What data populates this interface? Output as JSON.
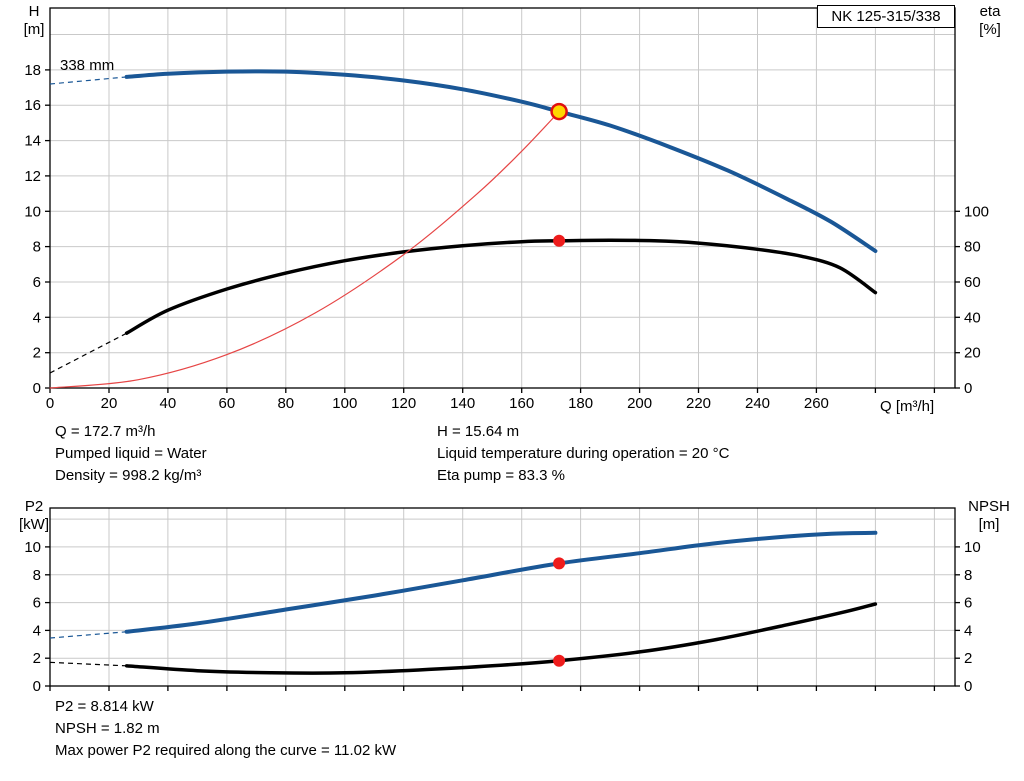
{
  "colors": {
    "blue": "#1a5796",
    "black": "#000000",
    "red": "#e64545",
    "marker_red": "#ee1c1c",
    "yellow": "#ffd800",
    "duty_ring": "#e01010",
    "grid": "#c9c9c9",
    "axis": "#000000"
  },
  "chart_data": [
    {
      "type": "line",
      "title": "NK 125-315/338",
      "annotation": "338 mm",
      "xlabel": "Q [m³/h]",
      "x_range": [
        0,
        307
      ],
      "x_tick_step": 20,
      "x_label_max": 260,
      "grid": true,
      "left_axis": {
        "label_lines": [
          "H",
          "[m]"
        ],
        "range": [
          0,
          21.5
        ],
        "tick_step": 2,
        "label_max": 18
      },
      "right_axis": {
        "label_lines": [
          "eta",
          "[%]"
        ],
        "range": [
          0,
          215
        ],
        "tick_step": 20,
        "label_max": 100
      },
      "series": [
        {
          "name": "head-curve-338mm",
          "axis": "left",
          "color_key": "blue",
          "width": 4,
          "dashed_lead": [
            [
              0,
              17.2
            ],
            [
              26,
              17.6
            ]
          ],
          "points": [
            [
              26,
              17.6
            ],
            [
              40,
              17.78
            ],
            [
              60,
              17.9
            ],
            [
              80,
              17.9
            ],
            [
              100,
              17.72
            ],
            [
              120,
              17.4
            ],
            [
              140,
              16.9
            ],
            [
              160,
              16.2
            ],
            [
              172.7,
              15.64
            ],
            [
              190,
              14.85
            ],
            [
              210,
              13.65
            ],
            [
              230,
              12.3
            ],
            [
              250,
              10.7
            ],
            [
              265,
              9.4
            ],
            [
              280,
              7.75
            ]
          ]
        },
        {
          "name": "efficiency-curve",
          "axis": "right",
          "color_key": "black",
          "width": 3.5,
          "dashed_lead": [
            [
              0,
              8.5
            ],
            [
              26,
              31
            ]
          ],
          "points": [
            [
              26,
              31
            ],
            [
              40,
              44
            ],
            [
              60,
              56
            ],
            [
              80,
              65
            ],
            [
              100,
              72
            ],
            [
              120,
              77
            ],
            [
              140,
              80.5
            ],
            [
              160,
              82.8
            ],
            [
              172.7,
              83.3
            ],
            [
              190,
              83.6
            ],
            [
              205,
              83.3
            ],
            [
              220,
              82
            ],
            [
              240,
              78.5
            ],
            [
              255,
              74.5
            ],
            [
              268,
              68
            ],
            [
              280,
              54
            ]
          ]
        },
        {
          "name": "system-curve",
          "axis": "left",
          "color_key": "red",
          "width": 1.2,
          "points": [
            [
              0,
              0
            ],
            [
              30,
              0.47
            ],
            [
              60,
              1.89
            ],
            [
              90,
              4.25
            ],
            [
              120,
              7.55
            ],
            [
              145,
              11.0
            ],
            [
              160,
              13.4
            ],
            [
              172.7,
              15.64
            ]
          ]
        }
      ],
      "markers": [
        {
          "name": "duty-point",
          "axis": "left",
          "x": 172.7,
          "y": 15.64,
          "r": 7.5,
          "fill_key": "yellow",
          "stroke_key": "duty_ring",
          "stroke_width": 2.5
        },
        {
          "name": "efficiency-point",
          "axis": "right",
          "x": 172.7,
          "y": 83.3,
          "r": 5.5,
          "fill_key": "marker_red",
          "stroke_key": "marker_red",
          "stroke_width": 1
        }
      ]
    },
    {
      "type": "line",
      "title": "",
      "xlabel": "",
      "x_range": [
        0,
        307
      ],
      "x_tick_step": 20,
      "x_label_max": -1,
      "grid": true,
      "left_axis": {
        "label_lines": [
          "P2",
          "[kW]"
        ],
        "range": [
          0,
          12.8
        ],
        "tick_step": 2,
        "label_max": 10
      },
      "right_axis": {
        "label_lines": [
          "NPSH",
          "[m]"
        ],
        "range": [
          0,
          12.8
        ],
        "tick_step": 2,
        "label_max": 10
      },
      "series": [
        {
          "name": "p2-curve",
          "axis": "left",
          "color_key": "blue",
          "width": 4,
          "dashed_lead": [
            [
              0,
              3.45
            ],
            [
              26,
              3.9
            ]
          ],
          "points": [
            [
              26,
              3.9
            ],
            [
              50,
              4.5
            ],
            [
              80,
              5.5
            ],
            [
              110,
              6.5
            ],
            [
              140,
              7.6
            ],
            [
              172.7,
              8.814
            ],
            [
              200,
              9.55
            ],
            [
              225,
              10.25
            ],
            [
              250,
              10.75
            ],
            [
              265,
              10.95
            ],
            [
              280,
              11.02
            ]
          ]
        },
        {
          "name": "npsh-curve",
          "axis": "right",
          "color_key": "black",
          "width": 3.5,
          "dashed_lead": [
            [
              0,
              1.7
            ],
            [
              26,
              1.45
            ]
          ],
          "points": [
            [
              26,
              1.45
            ],
            [
              50,
              1.1
            ],
            [
              75,
              0.95
            ],
            [
              100,
              0.95
            ],
            [
              125,
              1.15
            ],
            [
              150,
              1.45
            ],
            [
              172.7,
              1.82
            ],
            [
              200,
              2.45
            ],
            [
              225,
              3.3
            ],
            [
              250,
              4.4
            ],
            [
              270,
              5.35
            ],
            [
              280,
              5.9
            ]
          ]
        }
      ],
      "markers": [
        {
          "name": "p2-point",
          "axis": "left",
          "x": 172.7,
          "y": 8.814,
          "r": 5.5,
          "fill_key": "marker_red",
          "stroke_key": "marker_red",
          "stroke_width": 1
        },
        {
          "name": "npsh-point",
          "axis": "right",
          "x": 172.7,
          "y": 1.82,
          "r": 5.5,
          "fill_key": "marker_red",
          "stroke_key": "marker_red",
          "stroke_width": 1
        }
      ]
    }
  ],
  "info_top": {
    "col1": [
      "Q = 172.7 m³/h",
      "Pumped liquid = Water",
      "Density = 998.2 kg/m³"
    ],
    "col2": [
      "H = 15.64 m",
      "Liquid temperature during operation = 20 °C",
      "Eta pump = 83.3 %"
    ]
  },
  "info_bottom": [
    "P2 = 8.814 kW",
    "NPSH = 1.82 m",
    "Max power P2 required along the curve = 11.02 kW"
  ]
}
